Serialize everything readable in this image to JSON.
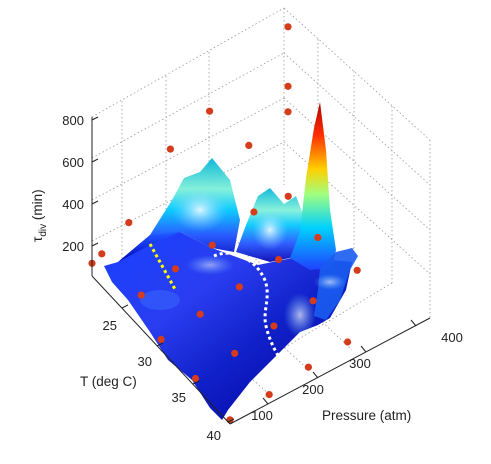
{
  "chart_data": {
    "type": "surface3d",
    "title": "",
    "zlabel_main": "τ",
    "zlabel_sub": "div",
    "zlabel_unit": " (min)",
    "xlabel": "Pressure (atm)",
    "ylabel": "T (deg C)",
    "x_ticks": [
      "100",
      "200",
      "300",
      "400"
    ],
    "y_ticks": [
      "25",
      "30",
      "35",
      "40"
    ],
    "z_ticks": [
      "200",
      "400",
      "600",
      "800"
    ],
    "xlim": [
      0,
      400
    ],
    "ylim": [
      20,
      40
    ],
    "zlim": [
      0,
      800
    ],
    "grid": true,
    "colormap": [
      "#0000b4",
      "#1e50ff",
      "#00c8ff",
      "#7ff0d8",
      "#c8ff50",
      "#ffb000",
      "#ff3000",
      "#b00000"
    ],
    "point_color": "#d43c1c",
    "annotation_colors": [
      "#ffff00",
      "#ffffff"
    ],
    "sample_points": [
      {
        "pressure": 0,
        "temperature": 20,
        "tau": 60
      },
      {
        "pressure": 20,
        "temperature": 20,
        "tau": 75
      },
      {
        "pressure": 75,
        "temperature": 20,
        "tau": 140
      },
      {
        "pressure": 160,
        "temperature": 20,
        "tau": 360
      },
      {
        "pressure": 240,
        "temperature": 20,
        "tau": 420
      },
      {
        "pressure": 320,
        "temperature": 20,
        "tau": 140
      },
      {
        "pressure": 400,
        "temperature": 20,
        "tau": 180
      },
      {
        "pressure": 400,
        "temperature": 20,
        "tau": 580
      },
      {
        "pressure": 400,
        "temperature": 20,
        "tau": 300
      },
      {
        "pressure": 30,
        "temperature": 25,
        "tau": 40
      },
      {
        "pressure": 100,
        "temperature": 25,
        "tau": 60
      },
      {
        "pressure": 175,
        "temperature": 25,
        "tau": 60
      },
      {
        "pressure": 260,
        "temperature": 25,
        "tau": 90
      },
      {
        "pressure": 330,
        "temperature": 25,
        "tau": 60
      },
      {
        "pressure": 0,
        "temperature": 30,
        "tau": 50
      },
      {
        "pressure": 80,
        "temperature": 30,
        "tau": 50
      },
      {
        "pressure": 160,
        "temperature": 30,
        "tau": 60
      },
      {
        "pressure": 240,
        "temperature": 30,
        "tau": 70
      },
      {
        "pressure": 320,
        "temperature": 30,
        "tau": 55
      },
      {
        "pressure": 0,
        "temperature": 35,
        "tau": 40
      },
      {
        "pressure": 80,
        "temperature": 35,
        "tau": 40
      },
      {
        "pressure": 160,
        "temperature": 35,
        "tau": 50
      },
      {
        "pressure": 240,
        "temperature": 35,
        "tau": 50
      },
      {
        "pressure": 330,
        "temperature": 35,
        "tau": 60
      },
      {
        "pressure": 0,
        "temperature": 40,
        "tau": 20
      },
      {
        "pressure": 80,
        "temperature": 40,
        "tau": 20
      },
      {
        "pressure": 160,
        "temperature": 40,
        "tau": 30
      },
      {
        "pressure": 240,
        "temperature": 40,
        "tau": 30
      }
    ],
    "surface_peaks": [
      {
        "pressure": 360,
        "temperature": 20,
        "tau": 800
      },
      {
        "pressure": 210,
        "temperature": 20,
        "tau": 560
      },
      {
        "pressure": 110,
        "temperature": 20,
        "tau": 520
      },
      {
        "pressure": 40,
        "temperature": 20,
        "tau": 400
      }
    ]
  }
}
